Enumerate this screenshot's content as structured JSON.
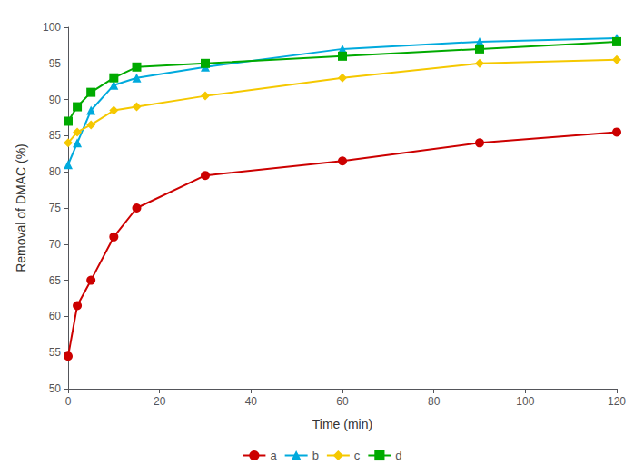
{
  "chart_data": {
    "type": "line",
    "x_label": "Time (min)",
    "y_label": "Removal of DMAC (%)",
    "x": [
      0,
      2,
      5,
      10,
      15,
      30,
      60,
      90,
      120
    ],
    "series": [
      {
        "name": "a",
        "color": "#cc0000",
        "marker": "circle",
        "values": [
          54.5,
          61.5,
          65.0,
          71.0,
          75.0,
          79.5,
          81.5,
          84.0,
          85.5
        ]
      },
      {
        "name": "b",
        "color": "#00aadd",
        "marker": "triangle",
        "values": [
          81.0,
          84.0,
          88.5,
          92.0,
          93.0,
          94.5,
          97.0,
          98.0,
          98.5
        ]
      },
      {
        "name": "c",
        "color": "#f5c800",
        "marker": "diamond",
        "values": [
          84.0,
          85.5,
          86.5,
          88.5,
          89.0,
          90.5,
          93.0,
          95.0,
          95.5
        ]
      },
      {
        "name": "d",
        "color": "#00aa00",
        "marker": "square",
        "values": [
          87.0,
          89.0,
          91.0,
          93.0,
          94.5,
          95.0,
          96.0,
          97.0,
          98.0
        ]
      }
    ],
    "xlim": [
      0,
      120
    ],
    "ylim": [
      50,
      100
    ],
    "xticks": [
      0,
      20,
      40,
      60,
      80,
      100,
      120
    ],
    "yticks": [
      50,
      55,
      60,
      65,
      70,
      75,
      80,
      85,
      90,
      95,
      100
    ],
    "grid": false,
    "legend": "bottom"
  }
}
